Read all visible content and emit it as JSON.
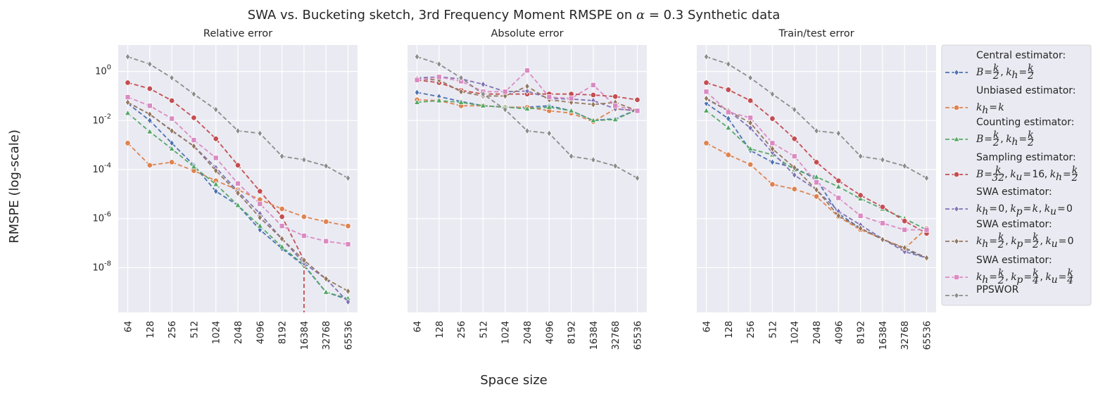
{
  "figure": {
    "title": "SWA vs. Bucketing sketch, 3rd Frequency Moment RMSPE on α = 0.3 Synthetic data",
    "xlabel": "Space size",
    "ylabel": "RMSPE (log-scale)"
  },
  "legend": {
    "placement": "right, outside",
    "entries": [
      {
        "line1": "Central estimator:",
        "line2": "B = k/2, k_h = k/2"
      },
      {
        "line1": "Unbiased estimator:",
        "line2": "k_h = k"
      },
      {
        "line1": "Counting estimator:",
        "line2": "B = k/2, k_h = k/2"
      },
      {
        "line1": "Sampling estimator:",
        "line2": "B = k/32, k_u = 16, k_h = k/2"
      },
      {
        "line1": "SWA estimator:",
        "line2": "k_h = 0, k_p = k, k_u = 0"
      },
      {
        "line1": "SWA estimator:",
        "line2": "k_h = k/2, k_p = k/2, k_u = 0"
      },
      {
        "line1": "SWA estimator:",
        "line2": "k_h = k/2, k_p = k/4, k_u = k/4"
      },
      {
        "line1": "PPSWOR",
        "line2": ""
      }
    ]
  },
  "chart_data": {
    "type": "line",
    "x": [
      64,
      128,
      256,
      512,
      1024,
      2048,
      4096,
      8192,
      16384,
      32768,
      65536
    ],
    "x_scale": "categorical",
    "y_scale": "log",
    "ylim": [
      1.5e-10,
      12
    ],
    "y_ticks": [
      "10^0",
      "10^-2",
      "10^-4",
      "10^-6",
      "10^-8"
    ],
    "grid": true,
    "style": {
      "background": "#eaeaf2",
      "series_colors": [
        "#4c72b0",
        "#dd8452",
        "#55a868",
        "#c44e52",
        "#8172b3",
        "#937860",
        "#da8bc3",
        "#8c8c8c"
      ],
      "series_markers": [
        "diamond",
        "circle",
        "triangle",
        "circle",
        "diamond",
        "diamond",
        "square",
        "diamond"
      ]
    },
    "panels": [
      {
        "title": "Relative error",
        "y_tick_labels_shown": true,
        "series": [
          {
            "values": [
              0.05,
              0.01,
              0.0012,
              0.00015,
              1.3e-05,
              3.5e-06,
              3.5e-07,
              6e-08,
              1.2e-08,
              1e-09,
              5e-10
            ]
          },
          {
            "values": [
              0.0012,
              0.00015,
              0.0002,
              9e-05,
              3.5e-05,
              1.5e-05,
              6e-06,
              2.5e-06,
              1.2e-06,
              7.5e-07,
              5e-07
            ]
          },
          {
            "values": [
              0.02,
              0.0035,
              0.0007,
              0.00013,
              2.5e-05,
              3.5e-06,
              5e-07,
              7e-08,
              1.3e-08,
              1e-09,
              5.5e-10
            ]
          },
          {
            "values": [
              0.35,
              0.2,
              0.065,
              0.013,
              0.0018,
              0.00015,
              1.3e-05,
              1.2e-06,
              2e-08,
              null,
              null
            ]
          },
          {
            "values": [
              0.055,
              0.018,
              0.004,
              0.0009,
              0.00012,
              1.3e-05,
              1.6e-06,
              1.5e-07,
              1.5e-08,
              3.5e-09,
              4e-10
            ]
          },
          {
            "values": [
              0.055,
              0.018,
              0.0038,
              0.0009,
              9e-05,
              1.1e-05,
              1.1e-06,
              1.5e-07,
              2e-08,
              3.5e-09,
              1.1e-09
            ]
          },
          {
            "values": [
              0.09,
              0.04,
              0.012,
              0.0016,
              0.0003,
              2.7e-05,
              4e-06,
              5e-07,
              2e-07,
              1.2e-07,
              9e-08
            ]
          },
          {
            "values": [
              4.0,
              2.0,
              0.55,
              0.12,
              0.028,
              0.0038,
              0.003,
              0.00035,
              0.00025,
              0.00014,
              4.5e-05
            ]
          }
        ]
      },
      {
        "title": "Absolute error",
        "y_tick_labels_shown": false,
        "series": [
          {
            "values": [
              0.14,
              0.095,
              0.06,
              0.04,
              0.035,
              0.035,
              0.04,
              0.025,
              0.01,
              0.012,
              0.028
            ]
          },
          {
            "values": [
              0.07,
              0.065,
              0.04,
              0.04,
              0.035,
              0.035,
              0.025,
              0.02,
              0.009,
              0.03,
              0.025
            ]
          },
          {
            "values": [
              0.055,
              0.065,
              0.055,
              0.04,
              0.035,
              0.03,
              0.035,
              0.025,
              0.01,
              0.011,
              0.028
            ]
          },
          {
            "values": [
              0.45,
              0.35,
              0.17,
              0.12,
              0.12,
              0.12,
              0.12,
              0.12,
              0.11,
              0.095,
              0.07
            ]
          },
          {
            "values": [
              0.55,
              0.6,
              0.5,
              0.3,
              0.15,
              0.16,
              0.08,
              0.075,
              0.065,
              0.03,
              0.025
            ]
          },
          {
            "values": [
              0.5,
              0.45,
              0.15,
              0.1,
              0.1,
              0.25,
              0.07,
              0.055,
              0.045,
              0.055,
              0.025
            ]
          },
          {
            "values": [
              0.45,
              0.6,
              0.4,
              0.15,
              0.15,
              1.1,
              0.09,
              0.08,
              0.28,
              0.04,
              0.025
            ]
          },
          {
            "values": [
              4.0,
              2.0,
              0.55,
              0.12,
              0.028,
              0.0038,
              0.003,
              0.00035,
              0.00025,
              0.00014,
              4.5e-05
            ]
          }
        ]
      },
      {
        "title": "Train/test error",
        "y_tick_labels_shown": false,
        "series": [
          {
            "values": [
              0.05,
              0.012,
              0.0006,
              0.0002,
              0.00012,
              4e-05,
              1.6e-06,
              4e-07,
              1.5e-07,
              5.5e-08,
              2.5e-08
            ]
          },
          {
            "values": [
              0.0012,
              0.0004,
              0.00016,
              2.5e-05,
              1.6e-05,
              8e-06,
              1.2e-06,
              3.5e-07,
              1.5e-07,
              6e-08,
              4e-07
            ]
          },
          {
            "values": [
              0.025,
              0.005,
              0.0007,
              0.0004,
              0.0001,
              5e-05,
              2e-05,
              6.5e-06,
              2.5e-06,
              1e-06,
              3.5e-07
            ]
          },
          {
            "values": [
              0.35,
              0.18,
              0.065,
              0.012,
              0.0018,
              0.0002,
              3.5e-05,
              9e-06,
              3e-06,
              8e-07,
              2.5e-07
            ]
          },
          {
            "values": [
              0.075,
              0.025,
              0.005,
              0.0005,
              6e-05,
              1.5e-05,
              2e-06,
              5.5e-07,
              1.5e-07,
              4.5e-08,
              2.5e-08
            ]
          },
          {
            "values": [
              0.08,
              0.025,
              0.008,
              0.0007,
              0.00012,
              1.5e-05,
              1.3e-06,
              4e-07,
              1.4e-07,
              6.5e-08,
              2.5e-08
            ]
          },
          {
            "values": [
              0.15,
              0.022,
              0.013,
              0.0012,
              0.00035,
              3e-05,
              7e-06,
              1.3e-06,
              6.5e-07,
              3.5e-07,
              3.5e-07
            ]
          },
          {
            "values": [
              4.0,
              2.0,
              0.55,
              0.12,
              0.028,
              0.0038,
              0.003,
              0.00035,
              0.00025,
              0.00014,
              4.5e-05
            ]
          }
        ]
      }
    ]
  }
}
